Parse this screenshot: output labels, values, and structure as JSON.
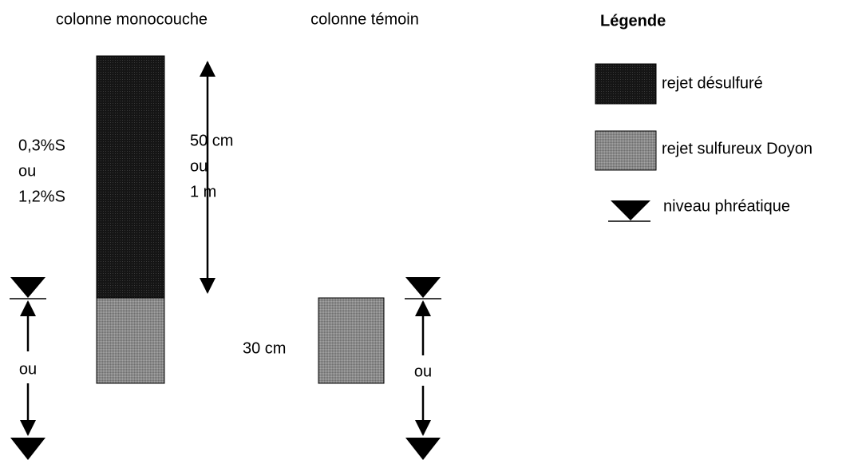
{
  "columns": [
    {
      "title": "colonne monocouche",
      "sulfur_labels": [
        "0,3%S",
        "ou",
        "1,2%S"
      ],
      "height_labels": [
        "50 cm",
        "ou",
        "1 m"
      ],
      "water_label": "ou"
    },
    {
      "title": "colonne témoin",
      "height_label": "30 cm",
      "water_label": "ou"
    }
  ],
  "legend": {
    "title": "Légende",
    "items": [
      "rejet désulfuré",
      "rejet sulfureux Doyon",
      "niveau phréatique"
    ]
  }
}
